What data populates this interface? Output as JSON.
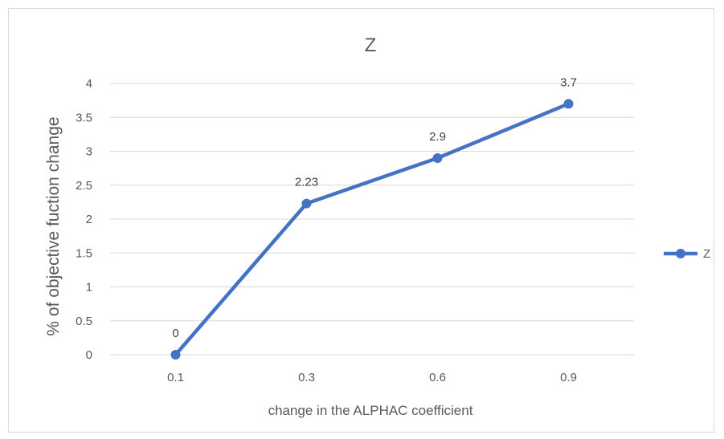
{
  "chart_data": {
    "type": "line",
    "title": "Z",
    "xlabel": "change in the ALPHAC coefficient",
    "ylabel": "% of objective fuction change",
    "categories": [
      "0.1",
      "0.3",
      "0.6",
      "0.9"
    ],
    "series": [
      {
        "name": "Z",
        "values": [
          0,
          2.23,
          2.9,
          3.7
        ],
        "data_labels": [
          "0",
          "2.23",
          "2.9",
          "3.7"
        ],
        "color": "#4472C4"
      }
    ],
    "ylim": [
      0,
      4
    ],
    "yticks": [
      0,
      0.5,
      1,
      1.5,
      2,
      2.5,
      3,
      3.5,
      4
    ],
    "ytick_labels": [
      "0",
      "0.5",
      "1",
      "1.5",
      "2",
      "2.5",
      "3",
      "3.5",
      "4"
    ],
    "grid": true,
    "legend": "right",
    "gridline_color": "#d9d9d9"
  }
}
